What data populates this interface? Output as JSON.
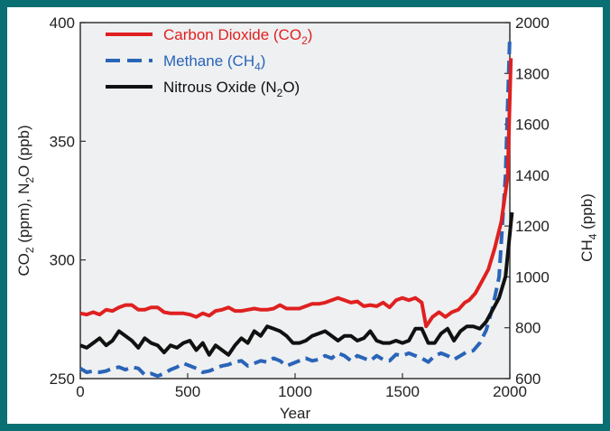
{
  "chart_data": {
    "type": "line",
    "xlabel": "Year",
    "ylabel_left": "CO2 (ppm), N2O (ppb)",
    "ylabel_right": "CH4 (ppb)",
    "xlim": [
      0,
      2000
    ],
    "ylim_left": [
      250,
      400
    ],
    "ylim_right": [
      600,
      2000
    ],
    "x_ticks": [
      "0",
      "500",
      "1000",
      "1500",
      "2000"
    ],
    "y_left_ticks": [
      "250",
      "300",
      "350",
      "400"
    ],
    "y_right_ticks": [
      "600",
      "800",
      "1000",
      "1200",
      "1400",
      "1600",
      "1800",
      "2000"
    ],
    "grid": false,
    "legend_position": "top-left",
    "colors": {
      "plot_bg": "#eef0f1",
      "frame_bg": "#0a6f73"
    },
    "series": [
      {
        "name": "Carbon Dioxide (CO2)",
        "legend_main": "Carbon Dioxide (CO",
        "legend_sub": "2",
        "legend_tail": ")",
        "axis": "left",
        "color": "#e02020",
        "dash": "solid",
        "x": [
          0,
          30,
          60,
          90,
          120,
          150,
          180,
          210,
          240,
          270,
          300,
          330,
          360,
          390,
          420,
          450,
          480,
          510,
          540,
          570,
          600,
          630,
          660,
          690,
          720,
          750,
          780,
          810,
          840,
          870,
          900,
          930,
          960,
          990,
          1020,
          1050,
          1080,
          1110,
          1140,
          1170,
          1200,
          1230,
          1260,
          1290,
          1320,
          1350,
          1380,
          1410,
          1440,
          1470,
          1500,
          1530,
          1560,
          1590,
          1610,
          1640,
          1670,
          1700,
          1730,
          1760,
          1790,
          1810,
          1840,
          1870,
          1900,
          1930,
          1960,
          1990,
          2005
        ],
        "y": [
          277.5,
          277,
          278,
          277,
          279,
          278.5,
          280,
          281,
          281,
          279,
          279,
          280,
          280,
          278,
          277.5,
          277.5,
          277.5,
          277,
          276,
          277.5,
          276.5,
          278.5,
          279,
          280,
          278.5,
          278.5,
          279,
          279.5,
          279,
          279,
          279.5,
          281,
          279.5,
          279.5,
          279.5,
          280.5,
          281.5,
          281.5,
          282,
          283,
          284,
          283,
          282,
          282.5,
          280.5,
          281,
          280.5,
          282,
          280,
          283,
          284,
          283,
          284,
          282,
          272,
          276,
          278,
          276,
          278,
          279,
          282,
          283,
          286,
          291,
          296,
          305,
          316,
          335,
          385
        ]
      },
      {
        "name": "Methane (CH4)",
        "legend_main": "Methane (CH",
        "legend_sub": "4",
        "legend_tail": ")",
        "axis": "right",
        "color": "#2a64b8",
        "dash": "dashed",
        "x": [
          0,
          30,
          60,
          90,
          120,
          150,
          180,
          210,
          240,
          270,
          300,
          330,
          360,
          390,
          420,
          450,
          480,
          510,
          540,
          570,
          600,
          630,
          660,
          690,
          720,
          750,
          780,
          810,
          840,
          870,
          900,
          930,
          960,
          990,
          1020,
          1050,
          1080,
          1110,
          1140,
          1170,
          1200,
          1230,
          1260,
          1290,
          1320,
          1350,
          1380,
          1410,
          1440,
          1470,
          1500,
          1530,
          1560,
          1590,
          1620,
          1650,
          1680,
          1710,
          1740,
          1770,
          1800,
          1830,
          1860,
          1890,
          1920,
          1950,
          1980,
          2000
        ],
        "y": [
          640,
          625,
          630,
          625,
          630,
          640,
          645,
          635,
          645,
          640,
          615,
          620,
          610,
          620,
          635,
          645,
          660,
          650,
          640,
          625,
          630,
          640,
          650,
          655,
          665,
          670,
          650,
          660,
          670,
          665,
          680,
          670,
          650,
          660,
          670,
          680,
          670,
          675,
          690,
          680,
          700,
          690,
          670,
          690,
          680,
          670,
          690,
          675,
          670,
          695,
          690,
          700,
          690,
          680,
          665,
          690,
          700,
          690,
          675,
          690,
          705,
          710,
          740,
          790,
          880,
          1000,
          1400,
          1950
        ]
      },
      {
        "name": "Nitrous Oxide (N2O)",
        "legend_main": "Nitrous Oxide (N",
        "legend_sub": "2",
        "legend_tail": "O)",
        "axis": "left",
        "color": "#111111",
        "dash": "solid",
        "x": [
          0,
          30,
          60,
          90,
          120,
          150,
          180,
          210,
          240,
          270,
          300,
          330,
          360,
          390,
          420,
          450,
          480,
          510,
          540,
          570,
          600,
          630,
          660,
          690,
          720,
          750,
          780,
          810,
          840,
          870,
          900,
          930,
          960,
          990,
          1020,
          1050,
          1080,
          1110,
          1140,
          1170,
          1200,
          1230,
          1260,
          1290,
          1320,
          1350,
          1380,
          1410,
          1440,
          1470,
          1500,
          1530,
          1560,
          1590,
          1620,
          1650,
          1680,
          1710,
          1740,
          1770,
          1800,
          1830,
          1860,
          1890,
          1920,
          1950,
          1980,
          2010
        ],
        "y": [
          264,
          263,
          265,
          267,
          264,
          266,
          270,
          268,
          266,
          263,
          267,
          265,
          264,
          261,
          264,
          263,
          265,
          266,
          262,
          265,
          260,
          264,
          262,
          260,
          264,
          267,
          265,
          270,
          268,
          272,
          271,
          270,
          268,
          265,
          265,
          266,
          268,
          269,
          270,
          268,
          266,
          268,
          268,
          266,
          267,
          270,
          266,
          265,
          265,
          266,
          265,
          266,
          271,
          271,
          265,
          265,
          269,
          271,
          266,
          270,
          272,
          272,
          271,
          274,
          279,
          284,
          293,
          320
        ]
      }
    ]
  }
}
